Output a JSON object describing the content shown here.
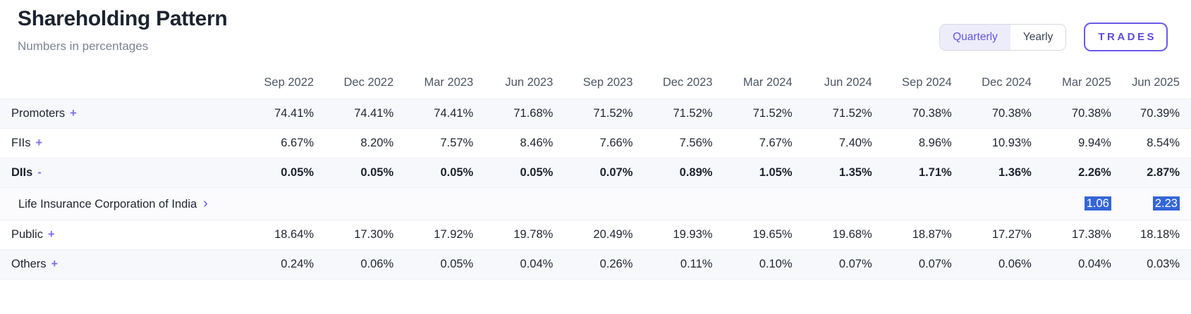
{
  "header": {
    "title": "Shareholding Pattern",
    "subtitle": "Numbers in percentages",
    "toggle": {
      "quarterly": "Quarterly",
      "yearly": "Yearly",
      "selected": "Quarterly"
    },
    "trades_label": "TRADES"
  },
  "colors": {
    "accent_purple": "#6355e3",
    "accent_purple_bg": "#edecfa",
    "trades_border": "#6a5ae8",
    "selection_blue": "#3366d6",
    "stripe_bg": "#f7f8fc",
    "header_text": "#4c5564",
    "body_text": "#1f2430"
  },
  "table": {
    "columns": [
      "Sep 2022",
      "Dec 2022",
      "Mar 2023",
      "Jun 2023",
      "Sep 2023",
      "Dec 2023",
      "Mar 2024",
      "Jun 2024",
      "Sep 2024",
      "Dec 2024",
      "Mar 2025",
      "Jun 2025"
    ],
    "rows": [
      {
        "key": "promoters",
        "label": "Promoters",
        "toggle": "+",
        "stripe": true,
        "bold": false,
        "subrow": false,
        "values": [
          "74.41%",
          "74.41%",
          "74.41%",
          "71.68%",
          "71.52%",
          "71.52%",
          "71.52%",
          "71.52%",
          "70.38%",
          "70.38%",
          "70.38%",
          "70.39%"
        ]
      },
      {
        "key": "fiis",
        "label": "FIIs",
        "toggle": "+",
        "stripe": false,
        "bold": false,
        "subrow": false,
        "values": [
          "6.67%",
          "8.20%",
          "7.57%",
          "8.46%",
          "7.66%",
          "7.56%",
          "7.67%",
          "7.40%",
          "8.96%",
          "10.93%",
          "9.94%",
          "8.54%"
        ]
      },
      {
        "key": "diis",
        "label": "DIIs",
        "toggle": "-",
        "stripe": true,
        "bold": true,
        "subrow": false,
        "values": [
          "0.05%",
          "0.05%",
          "0.05%",
          "0.05%",
          "0.07%",
          "0.89%",
          "1.05%",
          "1.35%",
          "1.71%",
          "1.36%",
          "2.26%",
          "2.87%"
        ]
      },
      {
        "key": "lic",
        "label": "Life Insurance Corporation of India",
        "chevron": "›",
        "stripe": false,
        "bold": false,
        "subrow": true,
        "values": [
          "",
          "",
          "",
          "",
          "",
          "",
          "",
          "",
          "",
          "",
          "1.06",
          "2.23"
        ],
        "highlight": [
          10,
          11
        ]
      },
      {
        "key": "public",
        "label": "Public",
        "toggle": "+",
        "stripe": false,
        "bold": false,
        "subrow": false,
        "values": [
          "18.64%",
          "17.30%",
          "17.92%",
          "19.78%",
          "20.49%",
          "19.93%",
          "19.65%",
          "19.68%",
          "18.87%",
          "17.27%",
          "17.38%",
          "18.18%"
        ]
      },
      {
        "key": "others",
        "label": "Others",
        "toggle": "+",
        "stripe": true,
        "bold": false,
        "subrow": false,
        "values": [
          "0.24%",
          "0.06%",
          "0.05%",
          "0.04%",
          "0.26%",
          "0.11%",
          "0.10%",
          "0.07%",
          "0.07%",
          "0.06%",
          "0.04%",
          "0.03%"
        ]
      }
    ]
  }
}
